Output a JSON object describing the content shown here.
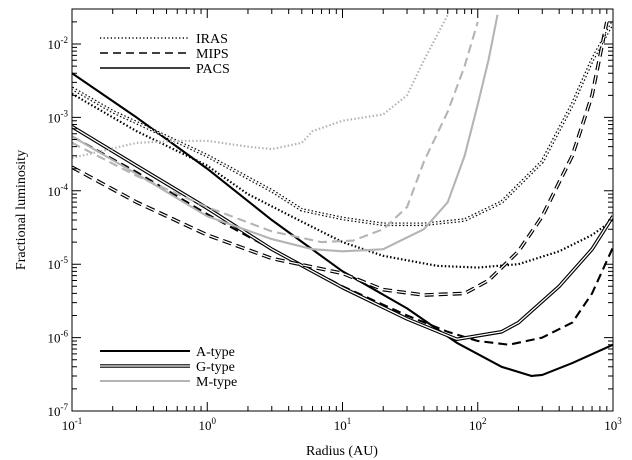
{
  "chart_data": {
    "type": "line",
    "title": "",
    "xlabel": "Radius (AU)",
    "ylabel": "Fractional luminosity",
    "xscale": "log",
    "yscale": "log",
    "xlim": [
      0.1,
      1000
    ],
    "ylim": [
      1e-07,
      0.03
    ],
    "x_ticks": [
      {
        "value": 0.1,
        "base": "10",
        "exp": "-1"
      },
      {
        "value": 1,
        "base": "10",
        "exp": "0"
      },
      {
        "value": 10,
        "base": "10",
        "exp": "1"
      },
      {
        "value": 100,
        "base": "10",
        "exp": "2"
      },
      {
        "value": 1000,
        "base": "10",
        "exp": "3"
      }
    ],
    "y_ticks": [
      {
        "value": 1e-07,
        "base": "10",
        "exp": "-7"
      },
      {
        "value": 1e-06,
        "base": "10",
        "exp": "-6"
      },
      {
        "value": 1e-05,
        "base": "10",
        "exp": "-5"
      },
      {
        "value": 0.0001,
        "base": "10",
        "exp": "-4"
      },
      {
        "value": 0.001,
        "base": "10",
        "exp": "-3"
      },
      {
        "value": 0.01,
        "base": "10",
        "exp": "-2"
      }
    ],
    "legend_instruments": {
      "placement": "top-left",
      "entries": [
        {
          "label": "IRAS",
          "style": "dotted"
        },
        {
          "label": "MIPS",
          "style": "dashed"
        },
        {
          "label": "PACS",
          "style": "solid"
        }
      ]
    },
    "legend_types": {
      "placement": "bottom-left",
      "entries": [
        {
          "label": "A-type",
          "style": "thick",
          "color": "#000000"
        },
        {
          "label": "G-type",
          "style": "double",
          "color": "#000000"
        },
        {
          "label": "M-type",
          "style": "thick",
          "color": "#b4b4b4"
        }
      ]
    },
    "series": [
      {
        "instrument": "PACS",
        "star": "A-type",
        "color": "#000000",
        "style": "thick",
        "points": [
          [
            0.1,
            0.004
          ],
          [
            0.3,
            0.001
          ],
          [
            1,
            0.0002
          ],
          [
            3,
            4e-05
          ],
          [
            10,
            8e-06
          ],
          [
            30,
            2.5e-06
          ],
          [
            70,
            8.5e-07
          ],
          [
            150,
            4e-07
          ],
          [
            250,
            3e-07
          ],
          [
            300,
            3.1e-07
          ],
          [
            500,
            4.5e-07
          ],
          [
            1000,
            8e-07
          ]
        ]
      },
      {
        "instrument": "MIPS",
        "star": "A-type",
        "color": "#000000",
        "style": "dashed-thick",
        "points": [
          [
            0.1,
            0.00055
          ],
          [
            0.3,
            0.00018
          ],
          [
            1,
            4.8e-05
          ],
          [
            3,
            1.6e-05
          ],
          [
            10,
            5e-06
          ],
          [
            30,
            2e-06
          ],
          [
            60,
            1.2e-06
          ],
          [
            100,
            9e-07
          ],
          [
            170,
            8e-07
          ],
          [
            300,
            1e-06
          ],
          [
            500,
            1.6e-06
          ],
          [
            700,
            4e-06
          ],
          [
            1000,
            1.7e-05
          ]
        ]
      },
      {
        "instrument": "IRAS",
        "star": "A-type",
        "color": "#000000",
        "style": "dotted-thick",
        "points": [
          [
            0.1,
            0.0021
          ],
          [
            0.3,
            0.00065
          ],
          [
            1,
            0.00022
          ],
          [
            2,
            9e-05
          ],
          [
            5,
            3.8e-05
          ],
          [
            10,
            2e-05
          ],
          [
            20,
            1.3e-05
          ],
          [
            50,
            9.5e-06
          ],
          [
            100,
            9e-06
          ],
          [
            200,
            1e-05
          ],
          [
            400,
            1.5e-05
          ],
          [
            700,
            2.5e-05
          ],
          [
            1000,
            4e-05
          ]
        ]
      },
      {
        "instrument": "PACS",
        "star": "G-type",
        "color": "#000000",
        "style": "double",
        "points": [
          [
            0.1,
            0.00075
          ],
          [
            0.3,
            0.00022
          ],
          [
            1,
            5.8e-05
          ],
          [
            3,
            1.6e-05
          ],
          [
            10,
            4.8e-06
          ],
          [
            30,
            1.8e-06
          ],
          [
            70,
            9.5e-07
          ],
          [
            150,
            1.2e-06
          ],
          [
            200,
            1.6e-06
          ],
          [
            400,
            5e-06
          ],
          [
            700,
            1.6e-05
          ],
          [
            1000,
            4.5e-05
          ]
        ]
      },
      {
        "instrument": "MIPS",
        "star": "G-type",
        "color": "#000000",
        "style": "dashed-double",
        "points": [
          [
            0.1,
            0.00021
          ],
          [
            0.3,
            7e-05
          ],
          [
            1,
            2.5e-05
          ],
          [
            3,
            1.2e-05
          ],
          [
            10,
            7.5e-06
          ],
          [
            20,
            4.5e-06
          ],
          [
            40,
            3.8e-06
          ],
          [
            80,
            4e-06
          ],
          [
            120,
            6e-06
          ],
          [
            200,
            1.5e-05
          ],
          [
            300,
            4.5e-05
          ],
          [
            500,
            0.0003
          ],
          [
            700,
            0.002
          ],
          [
            900,
            0.02
          ]
        ]
      },
      {
        "instrument": "IRAS",
        "star": "G-type",
        "color": "#000000",
        "style": "dotted-double",
        "points": [
          [
            0.1,
            0.0025
          ],
          [
            0.2,
            0.0012
          ],
          [
            0.3,
            0.00085
          ],
          [
            1,
            0.0003
          ],
          [
            2,
            0.00015
          ],
          [
            3,
            0.0001
          ],
          [
            5,
            5.5e-05
          ],
          [
            10,
            4.2e-05
          ],
          [
            20,
            3.5e-05
          ],
          [
            40,
            3.5e-05
          ],
          [
            80,
            4e-05
          ],
          [
            150,
            7e-05
          ],
          [
            300,
            0.00025
          ],
          [
            500,
            0.0015
          ],
          [
            700,
            0.006
          ],
          [
            1000,
            0.02
          ]
        ]
      },
      {
        "instrument": "PACS",
        "star": "M-type",
        "color": "#b4b4b4",
        "style": "thick",
        "points": [
          [
            0.1,
            0.00055
          ],
          [
            0.3,
            0.00017
          ],
          [
            1,
            4.5e-05
          ],
          [
            3,
            2.2e-05
          ],
          [
            6,
            1.6e-05
          ],
          [
            10,
            1.5e-05
          ],
          [
            20,
            1.6e-05
          ],
          [
            40,
            3e-05
          ],
          [
            60,
            7e-05
          ],
          [
            80,
            0.0003
          ],
          [
            100,
            0.0015
          ],
          [
            120,
            0.006
          ],
          [
            140,
            0.025
          ]
        ]
      },
      {
        "instrument": "MIPS",
        "star": "M-type",
        "color": "#b4b4b4",
        "style": "dashed-thick",
        "points": [
          [
            0.1,
            0.00045
          ],
          [
            0.3,
            0.00016
          ],
          [
            1,
            6e-05
          ],
          [
            3,
            2.8e-05
          ],
          [
            7,
            2e-05
          ],
          [
            12,
            2.1e-05
          ],
          [
            20,
            3e-05
          ],
          [
            30,
            6e-05
          ],
          [
            40,
            0.00025
          ],
          [
            60,
            0.0012
          ],
          [
            80,
            0.005
          ],
          [
            100,
            0.02
          ]
        ]
      },
      {
        "instrument": "IRAS",
        "star": "M-type",
        "color": "#b4b4b4",
        "style": "dotted-thick",
        "points": [
          [
            0.1,
            0.00028
          ],
          [
            0.3,
            0.00045
          ],
          [
            0.6,
            0.00048
          ],
          [
            1,
            0.00048
          ],
          [
            2,
            0.0004
          ],
          [
            3,
            0.00037
          ],
          [
            5,
            0.00045
          ],
          [
            6,
            0.00065
          ],
          [
            10,
            0.0009
          ],
          [
            20,
            0.0011
          ],
          [
            30,
            0.002
          ],
          [
            40,
            0.006
          ],
          [
            60,
            0.025
          ]
        ]
      }
    ]
  }
}
